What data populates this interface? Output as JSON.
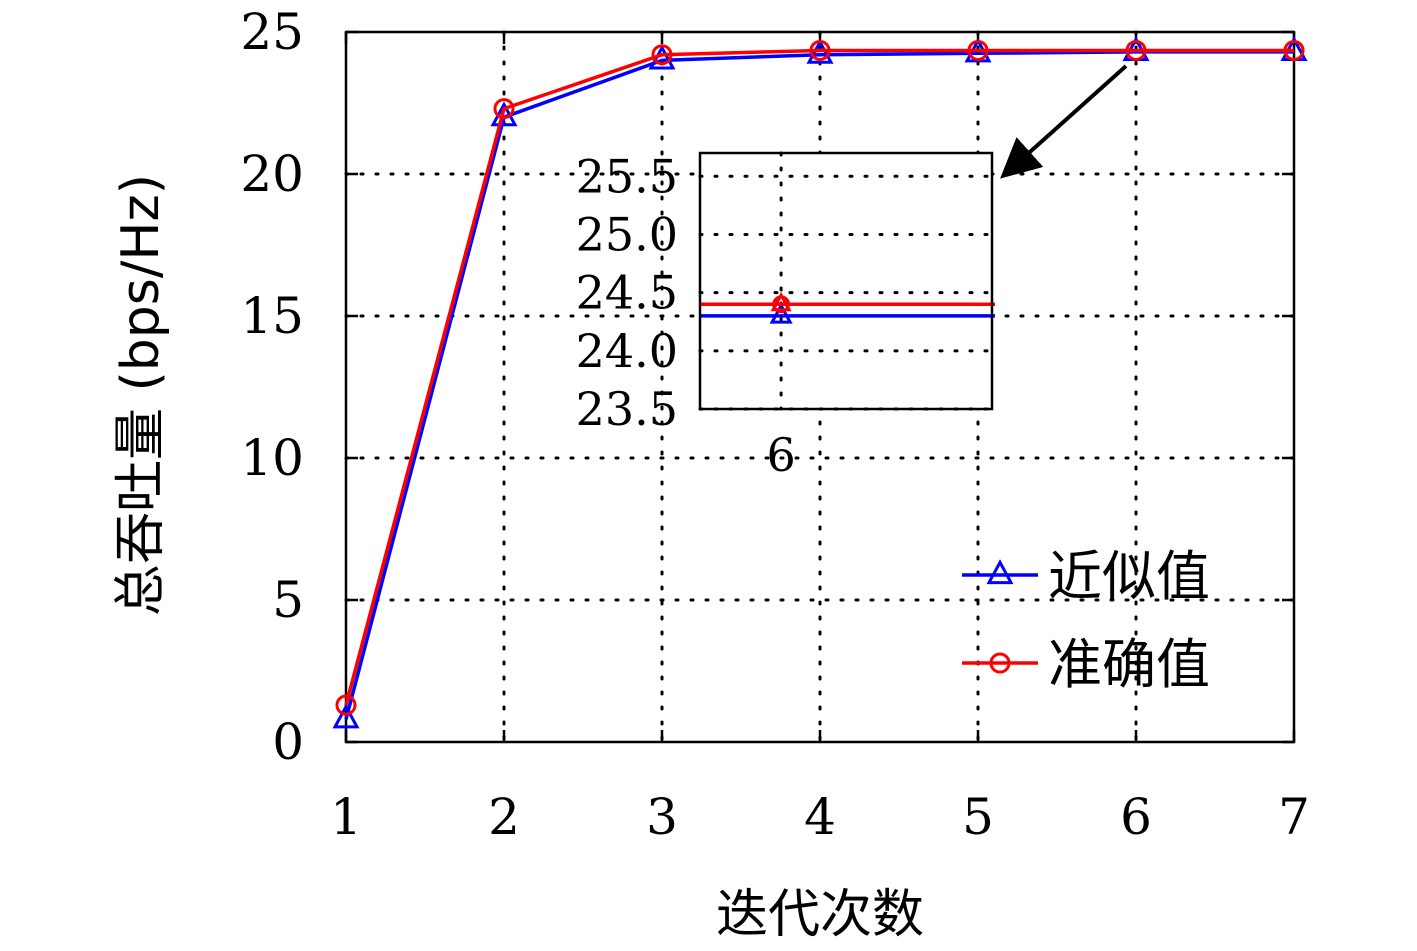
{
  "chart_data": {
    "type": "line",
    "title": "",
    "xlabel": "迭代次数",
    "ylabel": "总吞吐量 (bps/Hz)",
    "x": [
      1,
      2,
      3,
      4,
      5,
      6,
      7
    ],
    "xlim": [
      1,
      7
    ],
    "ylim": [
      0,
      25
    ],
    "xticks": [
      "1",
      "2",
      "3",
      "4",
      "5",
      "6",
      "7"
    ],
    "yticks": [
      "0",
      "5",
      "10",
      "15",
      "20",
      "25"
    ],
    "grid": true,
    "legend_position": "bottom-right",
    "series": [
      {
        "name": "近似值",
        "values": [
          0.8,
          22.0,
          24.0,
          24.2,
          24.25,
          24.3,
          24.3
        ],
        "color": "#0000ff",
        "marker": "triangle"
      },
      {
        "name": "准确值",
        "values": [
          1.3,
          22.3,
          24.2,
          24.35,
          24.35,
          24.35,
          24.35
        ],
        "color": "#ff0000",
        "marker": "circle"
      }
    ],
    "inset": {
      "x": [
        6
      ],
      "xlim": [
        5.5,
        7.3
      ],
      "ylim": [
        23.5,
        25.7
      ],
      "xticks": [
        "6"
      ],
      "yticks": [
        "23.5",
        "24.0",
        "24.5",
        "25.0",
        "25.5"
      ],
      "ytick_values": [
        23.5,
        24.0,
        24.5,
        25.0,
        25.5
      ],
      "series_values": [
        [
          24.3
        ],
        [
          24.4
        ]
      ],
      "points_to_x": 6
    }
  }
}
